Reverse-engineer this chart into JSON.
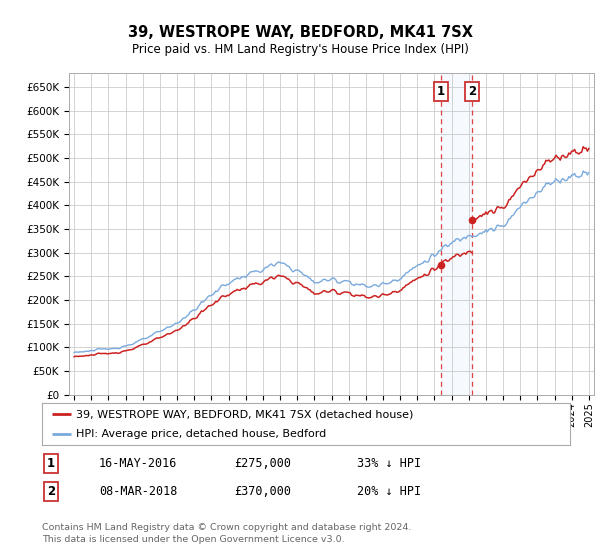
{
  "title": "39, WESTROPE WAY, BEDFORD, MK41 7SX",
  "subtitle": "Price paid vs. HM Land Registry's House Price Index (HPI)",
  "ylabel_ticks": [
    "£0",
    "£50K",
    "£100K",
    "£150K",
    "£200K",
    "£250K",
    "£300K",
    "£350K",
    "£400K",
    "£450K",
    "£500K",
    "£550K",
    "£600K",
    "£650K"
  ],
  "ytick_values": [
    0,
    50000,
    100000,
    150000,
    200000,
    250000,
    300000,
    350000,
    400000,
    450000,
    500000,
    550000,
    600000,
    650000
  ],
  "ylim": [
    0,
    680000
  ],
  "xlim_start": 1994.7,
  "xlim_end": 2025.3,
  "hpi_color": "#7aaadd",
  "price_color": "#cc2222",
  "t1_year_float": 2016.37,
  "t1_price": 275000,
  "t1_hpi_ratio": 0.6716,
  "t2_year_float": 2018.18,
  "t2_price": 370000,
  "t2_hpi_ratio": 0.8,
  "transaction1_label": "1",
  "transaction2_label": "2",
  "legend_line1": "39, WESTROPE WAY, BEDFORD, MK41 7SX (detached house)",
  "legend_line2": "HPI: Average price, detached house, Bedford",
  "footnote1": "Contains HM Land Registry data © Crown copyright and database right 2024.",
  "footnote2": "This data is licensed under the Open Government Licence v3.0.",
  "table_row1_num": "1",
  "table_row1_date": "16-MAY-2016",
  "table_row1_price": "£275,000",
  "table_row1_hpi": "33% ↓ HPI",
  "table_row2_num": "2",
  "table_row2_date": "08-MAR-2018",
  "table_row2_price": "£370,000",
  "table_row2_hpi": "20% ↓ HPI",
  "background_color": "#ffffff",
  "grid_color": "#cccccc",
  "hpi_base_values": [
    90000,
    93000,
    97000,
    103000,
    116000,
    133000,
    152000,
    179000,
    212000,
    237000,
    252000,
    265000,
    278000,
    263000,
    238000,
    243000,
    240000,
    228000,
    233000,
    248000,
    272000,
    295000,
    320000,
    338000,
    348000,
    354000,
    395000,
    432000,
    450000,
    462000,
    475000
  ],
  "hpi_base_years": [
    1995,
    1996,
    1997,
    1998,
    1999,
    2000,
    2001,
    2002,
    2003,
    2004,
    2005,
    2006,
    2007,
    2008,
    2009,
    2010,
    2011,
    2012,
    2013,
    2014,
    2015,
    2016,
    2017,
    2018,
    2019,
    2020,
    2021,
    2022,
    2023,
    2024,
    2025
  ]
}
